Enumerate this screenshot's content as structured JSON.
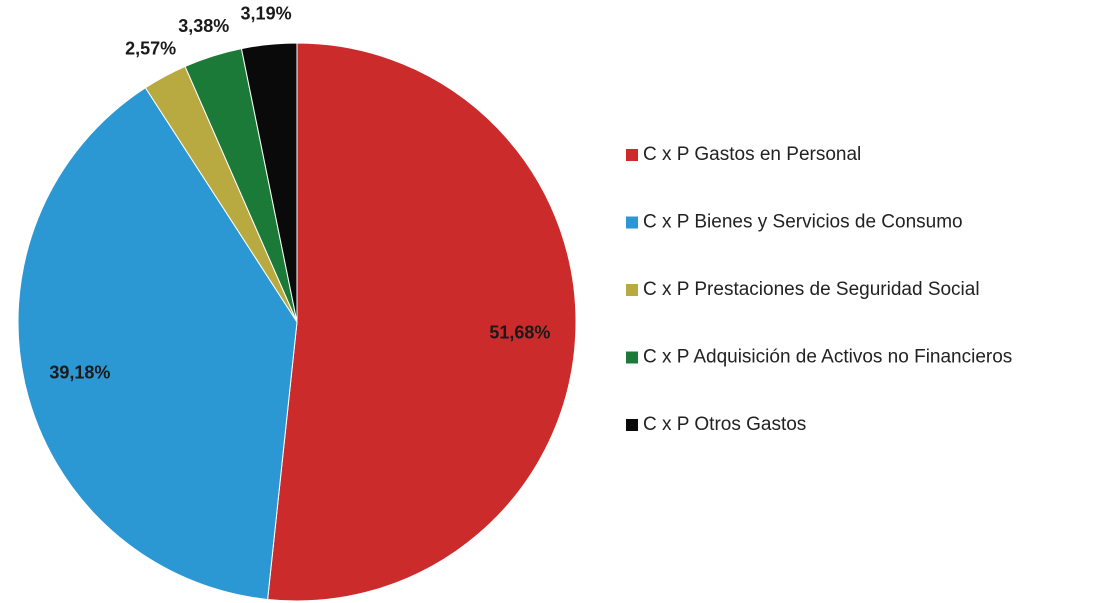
{
  "chart_data": {
    "type": "pie",
    "categories": [
      "C x P Gastos en Personal",
      "C x P Bienes y Servicios de Consumo",
      "C x P Prestaciones de Seguridad Social",
      "C x P Adquisición de Activos no Financieros",
      "C x P Otros Gastos"
    ],
    "values": [
      51.68,
      39.18,
      2.57,
      3.38,
      3.19
    ],
    "value_labels": [
      "51,68%",
      "39,18%",
      "2,57%",
      "3,38%",
      "3,19%"
    ],
    "colors": [
      "#cc2b2b",
      "#2b98d4",
      "#b8a940",
      "#1c7a38",
      "#0a0a0a"
    ],
    "legend": "right"
  }
}
